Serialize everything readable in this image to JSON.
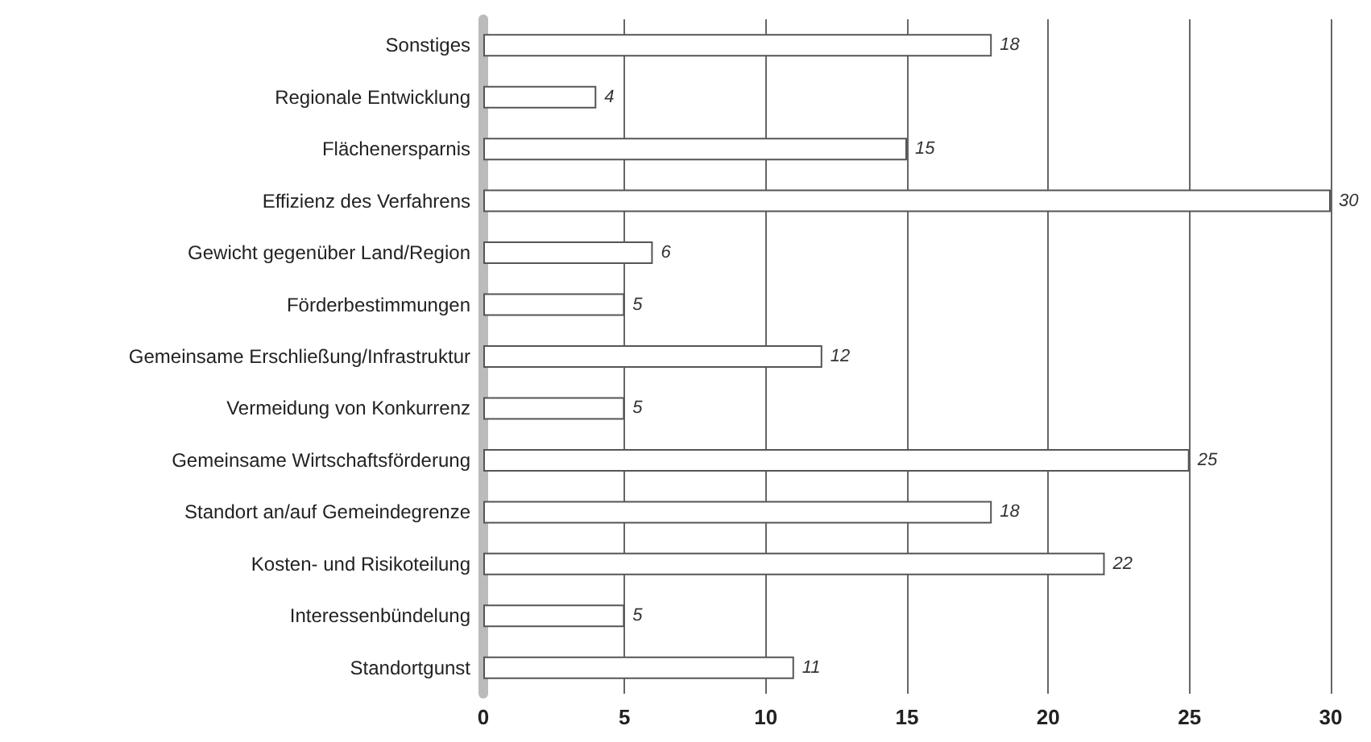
{
  "chart_data": {
    "type": "bar",
    "orientation": "horizontal",
    "categories": [
      "Sonstiges",
      "Regionale Entwicklung",
      "Flächenersparnis",
      "Effizienz des Verfahrens",
      "Gewicht gegenüber Land/Region",
      "Förderbestimmungen",
      "Gemeinsame Erschließung/Infrastruktur",
      "Vermeidung von Konkurrenz",
      "Gemeinsame Wirtschaftsförderung",
      "Standort an/auf Gemeindegrenze",
      "Kosten- und Risikoteilung",
      "Interessenbündelung",
      "Standortgunst"
    ],
    "values": [
      18,
      4,
      15,
      30,
      6,
      5,
      12,
      5,
      25,
      18,
      22,
      5,
      11
    ],
    "color": "#ffffff",
    "xlim": [
      0,
      30
    ],
    "xticks": [
      0,
      5,
      10,
      15,
      20,
      25,
      30
    ],
    "grid": "x",
    "data_labels": true
  }
}
